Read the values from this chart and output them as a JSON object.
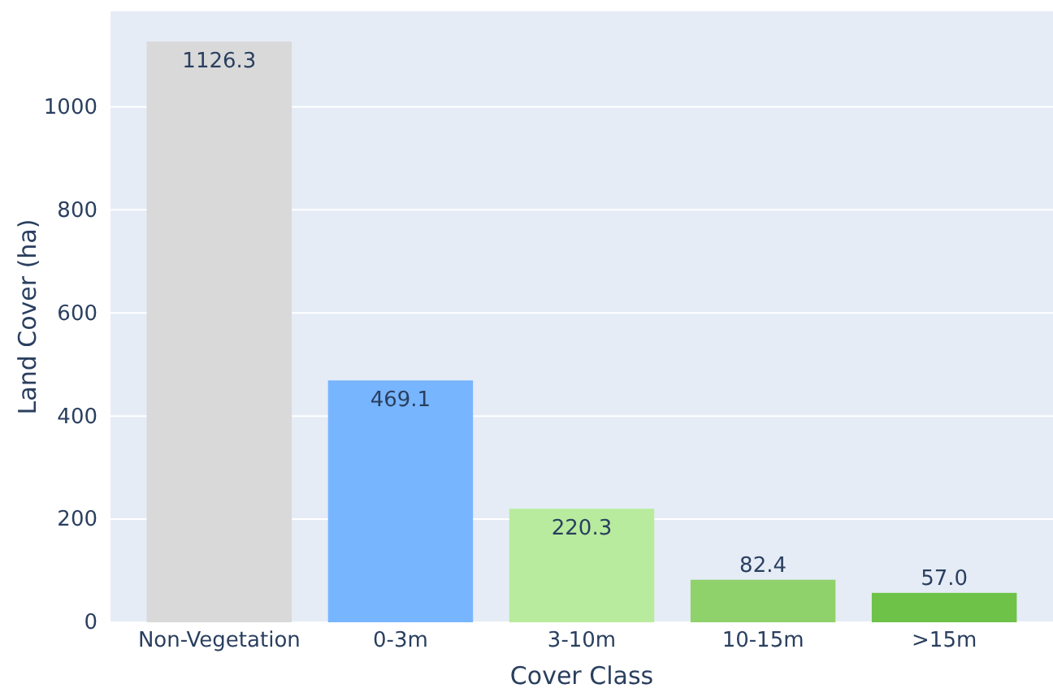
{
  "chart_data": {
    "type": "bar",
    "xlabel": "Cover Class",
    "ylabel": "Land Cover (ha)",
    "categories": [
      "Non-Vegetation",
      "0-3m",
      "3-10m",
      "10-15m",
      ">15m"
    ],
    "values": [
      1126.3,
      469.1,
      220.3,
      82.4,
      57.0
    ],
    "value_labels": [
      "1126.3",
      "469.1",
      "220.3",
      "82.4",
      "57.0"
    ],
    "colors": [
      "#d9d9d9",
      "#77b5fe",
      "#b8eb9e",
      "#8fd16a",
      "#6dc247"
    ],
    "ylim": [
      0,
      1185
    ],
    "yticks": [
      0,
      200,
      400,
      600,
      800,
      1000
    ],
    "grid": "y"
  }
}
